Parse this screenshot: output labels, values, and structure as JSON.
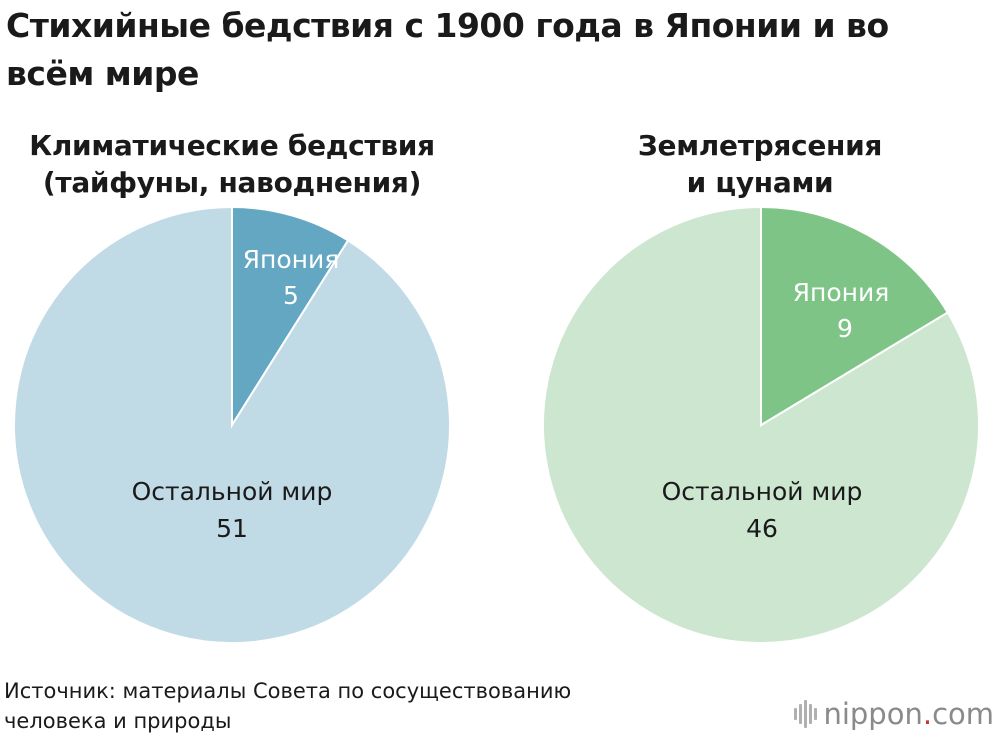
{
  "title": "Стихийные бедствия с 1900 года в Японии и во всём мире",
  "colors": {
    "climate_japan": "#64a7c2",
    "climate_rest": "#c1dbe6",
    "quake_japan": "#7fc487",
    "quake_rest": "#cce6d0"
  },
  "chart_data": [
    {
      "type": "pie",
      "title": "Климатические бедствия (тайфуны, наводнения)",
      "labels": [
        "Япония",
        "Остальной мир"
      ],
      "values": [
        5,
        51
      ]
    },
    {
      "type": "pie",
      "title": "Землетрясения и цунами",
      "labels": [
        "Япония",
        "Остальной мир"
      ],
      "values": [
        9,
        46
      ]
    }
  ],
  "charts": {
    "left": {
      "title_line1": "Климатические бедствия",
      "title_line2": "(тайфуны, наводнения)",
      "japan_label": "Япония",
      "japan_value": "5",
      "rest_label": "Остальной мир",
      "rest_value": "51"
    },
    "right": {
      "title_line1": "Землетрясения",
      "title_line2": "и цунами",
      "japan_label": "Япония",
      "japan_value": "9",
      "rest_label": "Остальной мир",
      "rest_value": "46"
    }
  },
  "source": {
    "line1": "Источник: материалы Совета по сосуществованию",
    "line2": "человека и природы"
  },
  "logo": {
    "name": "nippon",
    "dot": ".",
    "domain": "com"
  }
}
